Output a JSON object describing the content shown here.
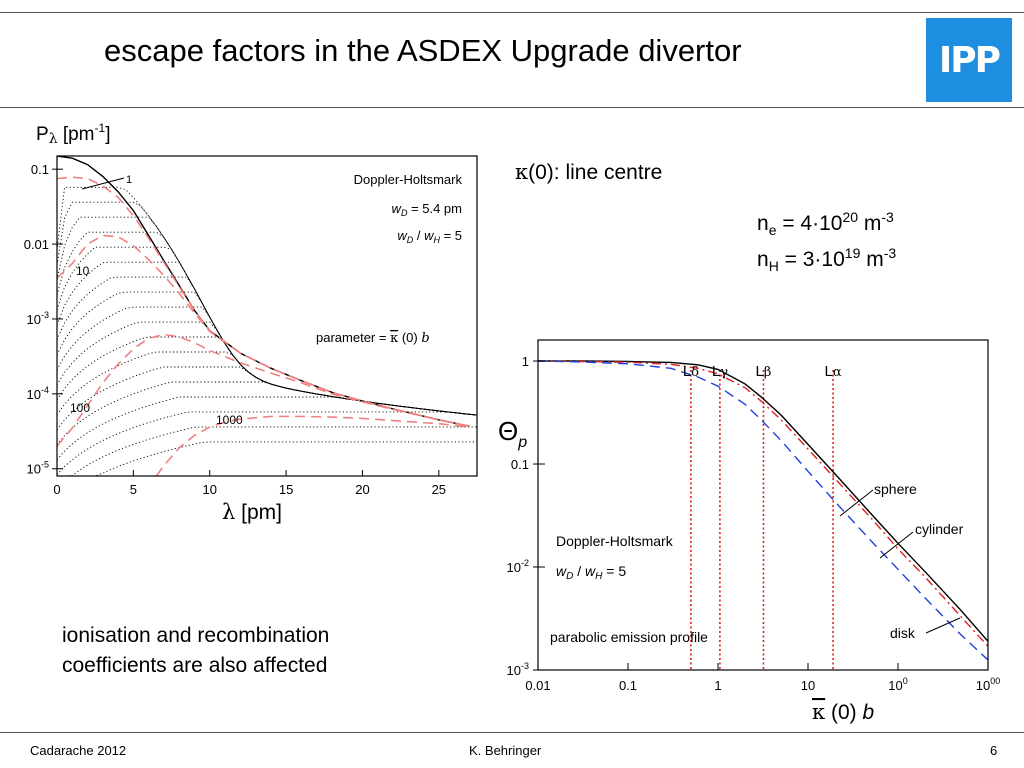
{
  "slide": {
    "title": "escape factors in the ASDEX Upgrade divertor",
    "logo_text": "IPP",
    "kappa_note": "(0): line centre",
    "kappa_symbol": "κ",
    "density_lines": [
      {
        "sym": "n",
        "sub": "e",
        "rest": " = 4·10",
        "exp": "20",
        "unit": " m",
        "unit_exp": "-3"
      },
      {
        "sym": "n",
        "sub": "H",
        "rest": " = 3·10",
        "exp": "19",
        "unit": " m",
        "unit_exp": "-3"
      }
    ],
    "bottom_note": [
      "ionisation and recombination",
      "coefficients are also affected"
    ],
    "footer": {
      "left": "Cadarache 2012",
      "center": "K. Behringer",
      "right": "6"
    }
  },
  "chart_data": [
    {
      "type": "line",
      "ylabel": "Pλ [pm-1]",
      "xlabel": "λ [pm]",
      "x_ticks": [
        "0",
        "5",
        "10",
        "15",
        "20",
        "25"
      ],
      "y_ticks": [
        "0.1",
        "0.01",
        "10-3",
        "10-4",
        "10-5"
      ],
      "xlim": [
        0,
        27.5
      ],
      "ylim": [
        8e-06,
        0.15
      ],
      "yscale": "log",
      "annotations": [
        "Doppler-Holtsmark",
        "wD = 5.4 pm",
        "wD / wH = 5",
        "parameter = κ(0) b"
      ],
      "curve_labels": [
        "1",
        "10",
        "100",
        "1000"
      ],
      "series": [
        {
          "name": "0",
          "style": "solid",
          "color": "#000000",
          "x": [
            0,
            1,
            2,
            3,
            4,
            5,
            6,
            7,
            8,
            9,
            10,
            12,
            14,
            16,
            18,
            20,
            22,
            25,
            27
          ],
          "y": [
            0.15,
            0.14,
            0.115,
            0.08,
            0.05,
            0.028,
            0.013,
            0.006,
            0.0028,
            0.0013,
            0.0007,
            0.00035,
            0.00022,
            0.00015,
            0.000105,
            8e-05,
            6.3e-05,
            4.5e-05,
            3.7e-05
          ]
        },
        {
          "name": "1",
          "style": "dashed",
          "color": "#f08080",
          "x": [
            0,
            1,
            2,
            3,
            4,
            5,
            6,
            7,
            8,
            9,
            10,
            12,
            14,
            16,
            18,
            20,
            22,
            25,
            27
          ],
          "y": [
            0.075,
            0.078,
            0.075,
            0.06,
            0.042,
            0.024,
            0.012,
            0.0057,
            0.0027,
            0.0013,
            0.0007,
            0.00035,
            0.00022,
            0.00015,
            0.000105,
            8e-05,
            6.3e-05,
            4.5e-05,
            3.7e-05
          ]
        },
        {
          "name": "10",
          "style": "dashed",
          "color": "#f08080",
          "x": [
            0,
            1,
            2,
            3,
            4,
            5,
            6,
            7,
            8,
            9,
            10,
            12,
            14,
            16,
            18,
            20,
            22,
            25,
            27
          ],
          "y": [
            0.0035,
            0.0055,
            0.01,
            0.013,
            0.0125,
            0.0095,
            0.0062,
            0.0038,
            0.0022,
            0.0012,
            0.00068,
            0.00035,
            0.00022,
            0.00015,
            0.000105,
            8e-05,
            6.3e-05,
            4.5e-05,
            3.7e-05
          ]
        },
        {
          "name": "100",
          "style": "dashed",
          "color": "#f08080",
          "x": [
            0,
            1,
            2,
            3,
            4,
            5,
            6,
            7,
            8,
            9,
            10,
            12,
            14,
            16,
            18,
            20,
            22,
            25,
            27
          ],
          "y": [
            2e-05,
            3.5e-05,
            7e-05,
            0.00014,
            0.00025,
            0.0004,
            0.00055,
            0.00062,
            0.00058,
            0.00048,
            0.00038,
            0.00026,
            0.00019,
            0.00014,
            0.0001,
            7.8e-05,
            6.2e-05,
            4.5e-05,
            3.7e-05
          ]
        },
        {
          "name": "1000",
          "style": "dashed",
          "color": "#f08080",
          "x": [
            6.5,
            7,
            8,
            9,
            10,
            11,
            12,
            14,
            16,
            18,
            20,
            22,
            25,
            27
          ],
          "y": [
            8e-06,
            1.1e-05,
            1.9e-05,
            2.8e-05,
            3.6e-05,
            4.2e-05,
            4.6e-05,
            5e-05,
            5e-05,
            4.9e-05,
            4.7e-05,
            4.4e-05,
            4e-05,
            3.6e-05
          ]
        }
      ]
    },
    {
      "type": "line",
      "ylabel": "Θp",
      "xlabel": "κ(0) b",
      "x_ticks": [
        "0.01",
        "0.1",
        "1",
        "10",
        "100",
        "1000"
      ],
      "y_ticks": [
        "1",
        "0.1",
        "10-2",
        "10-3"
      ],
      "xlim": [
        0.01,
        1000
      ],
      "ylim": [
        0.001,
        1.6
      ],
      "xscale": "log",
      "yscale": "log",
      "annotations": [
        "Doppler-Holtsmark",
        "wD / wH = 5",
        "parabolic emission profile"
      ],
      "vertical_lines": [
        {
          "label": "Lδ",
          "x": 0.5
        },
        {
          "label": "Lγ",
          "x": 1.05
        },
        {
          "label": "Lβ",
          "x": 3.2
        },
        {
          "label": "Lα",
          "x": 19
        }
      ],
      "series": [
        {
          "name": "sphere",
          "style": "solid",
          "color": "#000000",
          "x": [
            0.01,
            0.03,
            0.1,
            0.3,
            0.6,
            1,
            2,
            3,
            5,
            10,
            20,
            50,
            100,
            200,
            500,
            1000
          ],
          "y": [
            1.0,
            1.0,
            0.99,
            0.97,
            0.92,
            0.83,
            0.6,
            0.45,
            0.3,
            0.155,
            0.08,
            0.033,
            0.017,
            0.009,
            0.0038,
            0.0019
          ]
        },
        {
          "name": "cylinder",
          "style": "dashdot",
          "color": "#e02020",
          "x": [
            0.01,
            0.03,
            0.1,
            0.3,
            0.6,
            1,
            2,
            3,
            5,
            10,
            20,
            50,
            100,
            200,
            500,
            1000
          ],
          "y": [
            1.0,
            0.99,
            0.975,
            0.93,
            0.85,
            0.75,
            0.55,
            0.41,
            0.27,
            0.14,
            0.072,
            0.03,
            0.015,
            0.008,
            0.0033,
            0.0017
          ]
        },
        {
          "name": "disk",
          "style": "dashed",
          "color": "#2040e0",
          "x": [
            0.01,
            0.03,
            0.1,
            0.3,
            0.6,
            1,
            2,
            3,
            5,
            10,
            20,
            50,
            100,
            200,
            500,
            1000
          ],
          "y": [
            1.0,
            0.98,
            0.94,
            0.85,
            0.7,
            0.57,
            0.38,
            0.27,
            0.17,
            0.085,
            0.043,
            0.018,
            0.0095,
            0.005,
            0.0022,
            0.00125
          ]
        }
      ]
    }
  ]
}
